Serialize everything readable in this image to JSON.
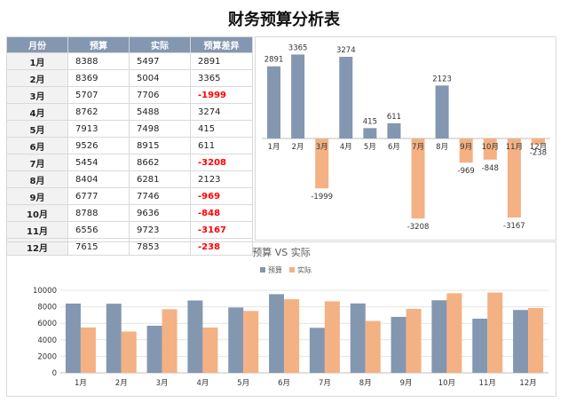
{
  "title": "财务预算分析表",
  "table": {
    "headers": [
      "月份",
      "预算",
      "实际",
      "预算差异"
    ],
    "rows": [
      {
        "month": "1月",
        "budget": "8388",
        "actual": "5497",
        "diff": "2891"
      },
      {
        "month": "2月",
        "budget": "8369",
        "actual": "5004",
        "diff": "3365"
      },
      {
        "month": "3月",
        "budget": "5707",
        "actual": "7706",
        "diff": "-1999"
      },
      {
        "month": "4月",
        "budget": "8762",
        "actual": "5488",
        "diff": "3274"
      },
      {
        "month": "5月",
        "budget": "7913",
        "actual": "7498",
        "diff": "415"
      },
      {
        "month": "6月",
        "budget": "9526",
        "actual": "8915",
        "diff": "611"
      },
      {
        "month": "7月",
        "budget": "5454",
        "actual": "8662",
        "diff": "-3208"
      },
      {
        "month": "8月",
        "budget": "8404",
        "actual": "6281",
        "diff": "2123"
      },
      {
        "month": "9月",
        "budget": "6777",
        "actual": "7746",
        "diff": "-969"
      },
      {
        "month": "10月",
        "budget": "8788",
        "actual": "9636",
        "diff": "-848"
      },
      {
        "month": "11月",
        "budget": "6556",
        "actual": "9723",
        "diff": "-3167"
      },
      {
        "month": "12月",
        "budget": "7615",
        "actual": "7853",
        "diff": "-238"
      }
    ]
  },
  "colors": {
    "budget": "#8497b0",
    "actual": "#f4b183",
    "negative_text": "#ff0000",
    "header_bg": "#8497b0"
  },
  "chart_data": [
    {
      "type": "bar",
      "title": "",
      "categories": [
        "1月",
        "2月",
        "3月",
        "4月",
        "5月",
        "6月",
        "7月",
        "8月",
        "9月",
        "10月",
        "11月",
        "12月"
      ],
      "values": [
        2891,
        3365,
        -1999,
        3274,
        415,
        611,
        -3208,
        2123,
        -969,
        -848,
        -3167,
        -238
      ],
      "positive_color": "#8497b0",
      "negative_color": "#f4b183",
      "ylim": [
        -3700,
        3700
      ],
      "data_labels": true,
      "grid": false,
      "xlabel": "",
      "ylabel": ""
    },
    {
      "type": "bar",
      "title": "预算 VS 实际",
      "categories": [
        "1月",
        "2月",
        "3月",
        "4月",
        "5月",
        "6月",
        "7月",
        "8月",
        "9月",
        "10月",
        "11月",
        "12月"
      ],
      "series": [
        {
          "name": "预算",
          "values": [
            8388,
            8369,
            5707,
            8762,
            7913,
            9526,
            5454,
            8404,
            6777,
            8788,
            6556,
            7615
          ],
          "color": "#8497b0"
        },
        {
          "name": "实际",
          "values": [
            5497,
            5004,
            7706,
            5488,
            7498,
            8915,
            8662,
            6281,
            7746,
            9636,
            9723,
            7853
          ],
          "color": "#f4b183"
        }
      ],
      "yticks": [
        "0",
        "2000",
        "4000",
        "6000",
        "8000",
        "10000"
      ],
      "ylim": [
        0,
        10000
      ],
      "grid": true,
      "legend": "top-center",
      "xlabel": "",
      "ylabel": ""
    }
  ]
}
